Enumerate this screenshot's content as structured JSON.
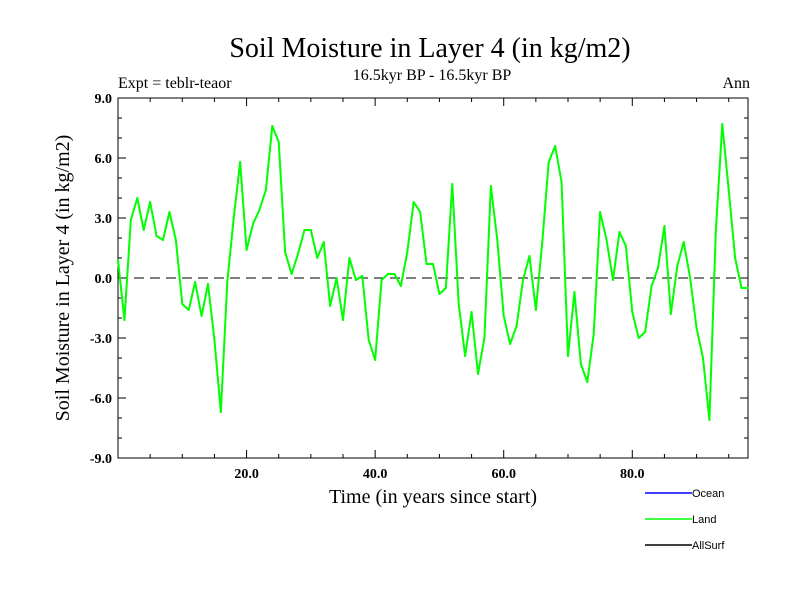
{
  "chart_data": {
    "type": "line",
    "title": "Soil Moisture in Layer 4 (in kg/m2)",
    "subtitle": "16.5kyr BP - 16.5kyr BP",
    "left_label": "Expt = teblr-teaor",
    "right_label": "Ann",
    "xlabel": "Time (in years since start)",
    "ylabel": "Soil Moisture in Layer 4 (in kg/m2)",
    "xlim": [
      0,
      98
    ],
    "ylim": [
      -9,
      9
    ],
    "x_ticks": [
      20,
      40,
      60,
      80
    ],
    "x_tick_labels": [
      "20.0",
      "40.0",
      "60.0",
      "80.0"
    ],
    "y_ticks": [
      -9,
      -6,
      -3,
      0,
      3,
      6,
      9
    ],
    "y_tick_labels": [
      "-9.0",
      "-6.0",
      "-3.0",
      "0.0",
      "3.0",
      "6.0",
      "9.0"
    ],
    "zero_line": true,
    "legend": [
      {
        "name": "Ocean",
        "color": "#0000ff"
      },
      {
        "name": "Land",
        "color": "#00ff00"
      },
      {
        "name": "AllSurf",
        "color": "#000000"
      }
    ],
    "series": [
      {
        "name": "Land",
        "color": "#00ff00",
        "x": [
          0,
          1,
          2,
          3,
          4,
          5,
          6,
          7,
          8,
          9,
          10,
          11,
          12,
          13,
          14,
          15,
          16,
          17,
          18,
          19,
          20,
          21,
          22,
          23,
          24,
          25,
          26,
          27,
          28,
          29,
          30,
          31,
          32,
          33,
          34,
          35,
          36,
          37,
          38,
          39,
          40,
          41,
          42,
          43,
          44,
          45,
          46,
          47,
          48,
          49,
          50,
          51,
          52,
          53,
          54,
          55,
          56,
          57,
          58,
          59,
          60,
          61,
          62,
          63,
          64,
          65,
          66,
          67,
          68,
          69,
          70,
          71,
          72,
          73,
          74,
          75,
          76,
          77,
          78,
          79,
          80,
          81,
          82,
          83,
          84,
          85,
          86,
          87,
          88,
          89,
          90,
          91,
          92,
          93,
          94,
          95,
          96,
          97,
          98
        ],
        "values": [
          0.9,
          -2.1,
          2.9,
          4.0,
          2.4,
          3.8,
          2.1,
          1.9,
          3.3,
          1.9,
          -1.3,
          -1.6,
          -0.2,
          -1.9,
          -0.3,
          -3.1,
          -6.7,
          -0.2,
          3.0,
          5.8,
          1.4,
          2.7,
          3.4,
          4.4,
          7.6,
          6.8,
          1.3,
          0.2,
          1.2,
          2.4,
          2.4,
          1.0,
          1.8,
          -1.4,
          0.0,
          -2.1,
          1.0,
          -0.1,
          0.1,
          -3.1,
          -4.1,
          -0.1,
          0.2,
          0.2,
          -0.4,
          1.3,
          3.8,
          3.3,
          0.7,
          0.7,
          -0.8,
          -0.5,
          4.7,
          -1.3,
          -3.9,
          -1.7,
          -4.8,
          -3.0,
          4.6,
          1.9,
          -1.9,
          -3.3,
          -2.4,
          -0.1,
          1.1,
          -1.6,
          1.8,
          5.8,
          6.6,
          4.8,
          -3.9,
          -0.7,
          -4.3,
          -5.2,
          -2.8,
          3.3,
          1.9,
          -0.1,
          2.3,
          1.6,
          -1.7,
          -3.0,
          -2.7,
          -0.4,
          0.5,
          2.6,
          -1.8,
          0.6,
          1.8,
          0.0,
          -2.5,
          -4.0,
          -7.1,
          2.4,
          7.7,
          4.4,
          1.0,
          -0.5,
          -0.5
        ]
      }
    ]
  }
}
